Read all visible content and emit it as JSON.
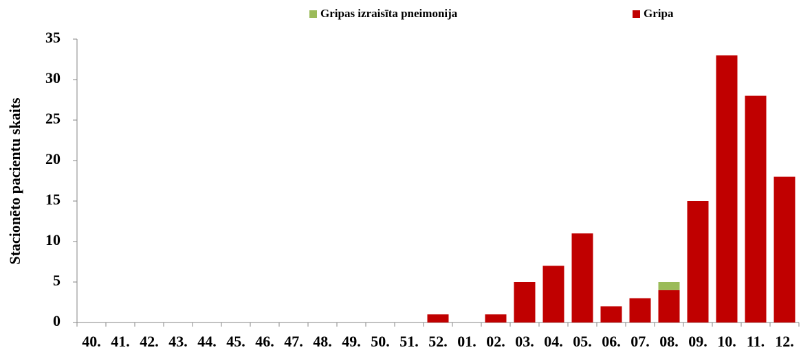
{
  "chart_data": {
    "type": "stacked-bar",
    "y_label": "Stacionēto pacientu skaits",
    "categories": [
      "40.",
      "41.",
      "42.",
      "43.",
      "44.",
      "45.",
      "46.",
      "47.",
      "48.",
      "49.",
      "50.",
      "51.",
      "52.",
      "01.",
      "02.",
      "03.",
      "04.",
      "05.",
      "06.",
      "07.",
      "08.",
      "09.",
      "10.",
      "11.",
      "12."
    ],
    "series": [
      {
        "name": "Gripas izraisīta pneimonija",
        "color": "#9bbb59",
        "values": [
          0,
          0,
          0,
          0,
          0,
          0,
          0,
          0,
          0,
          0,
          0,
          0,
          0,
          0,
          0,
          0,
          0,
          0,
          0,
          0,
          1,
          0,
          0,
          0,
          0
        ]
      },
      {
        "name": "Gripa",
        "color": "#c00000",
        "values": [
          0,
          0,
          0,
          0,
          0,
          0,
          0,
          0,
          0,
          0,
          0,
          0,
          1,
          0,
          1,
          5,
          7,
          11,
          2,
          3,
          4,
          15,
          33,
          28,
          18
        ]
      }
    ],
    "ylim": [
      0,
      35
    ],
    "yticks": [
      0,
      5,
      10,
      15,
      20,
      25,
      30,
      35
    ],
    "grid": false
  }
}
